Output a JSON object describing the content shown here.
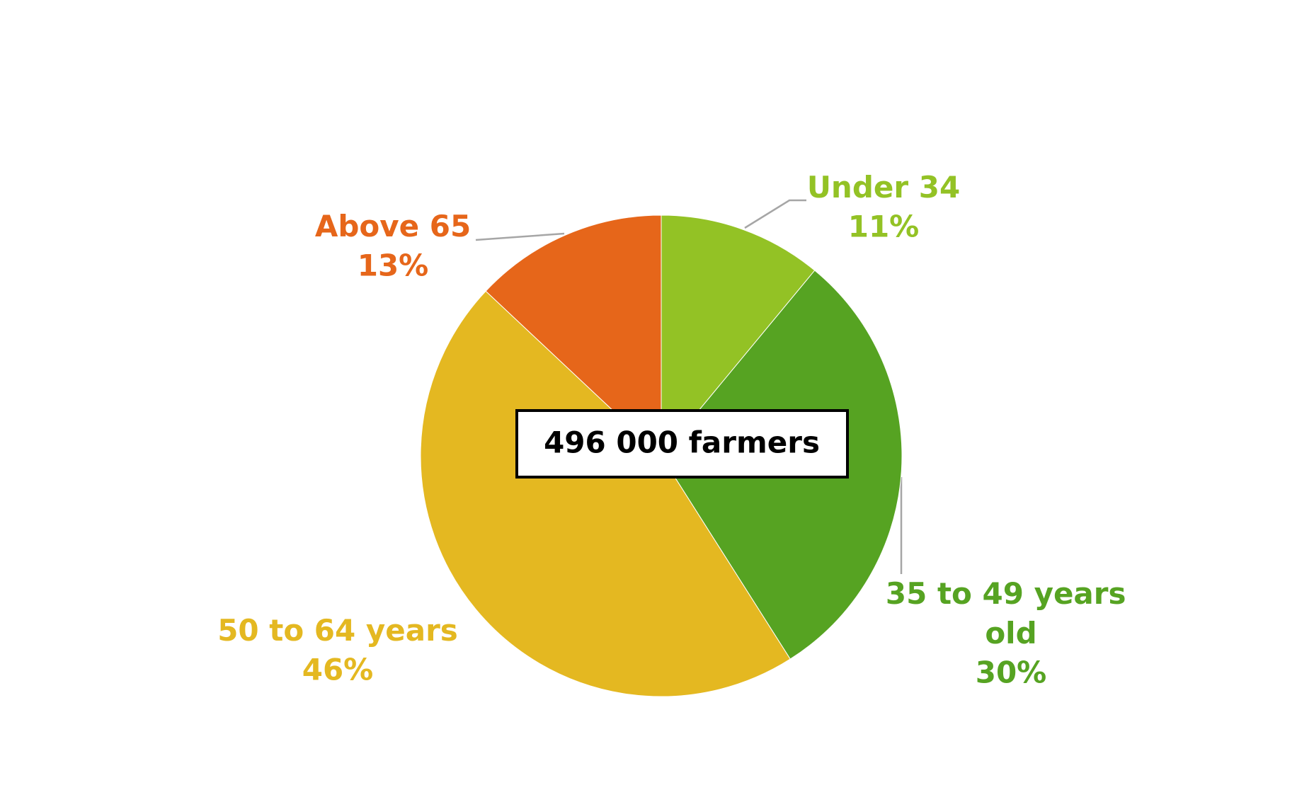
{
  "chart_data": {
    "type": "pie",
    "categories": [
      "Under 34",
      "35 to 49 years old",
      "50 to 64 years",
      "Above 65"
    ],
    "values": [
      11,
      30,
      46,
      13
    ],
    "value_labels": [
      "11%",
      "30%",
      "46%",
      "13%"
    ],
    "colors": [
      "#93c225",
      "#56a322",
      "#e4b821",
      "#e6661a"
    ],
    "annotation": "496 000 farmers"
  }
}
